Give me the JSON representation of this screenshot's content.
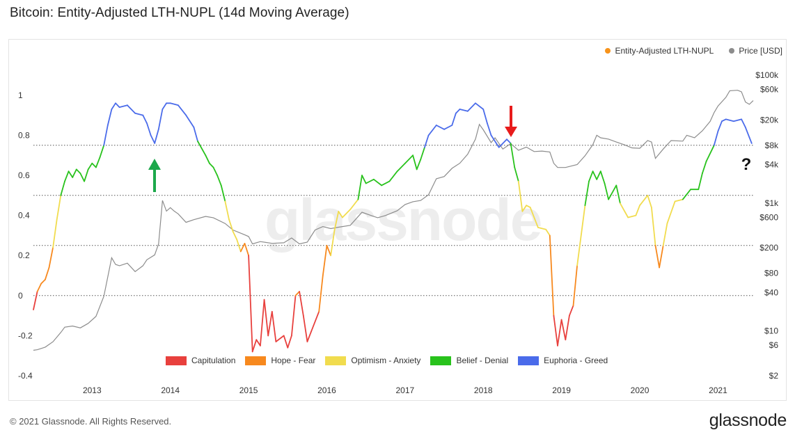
{
  "title": "Bitcoin: Entity-Adjusted LTH-NUPL (14d Moving Average)",
  "footer": {
    "copyright": "© 2021 Glassnode. All Rights Reserved.",
    "logo": "glassnode"
  },
  "watermark": "glassnode",
  "annotation": {
    "question": "?"
  },
  "chart_data": {
    "type": "line",
    "legend_top": [
      {
        "name": "Entity-Adjusted LTH-NUPL",
        "color": "#f7931a"
      },
      {
        "name": "Price [USD]",
        "color": "#8c8c8c"
      }
    ],
    "legend_bottom": [
      {
        "name": "Capitulation",
        "color": "#e8403d"
      },
      {
        "name": "Hope - Fear",
        "color": "#f7891e"
      },
      {
        "name": "Optimism - Anxiety",
        "color": "#f1dc4e"
      },
      {
        "name": "Belief - Denial",
        "color": "#28c21c"
      },
      {
        "name": "Euphoria - Greed",
        "color": "#4a6bea"
      }
    ],
    "x_ticks": [
      "2013",
      "2014",
      "2015",
      "2016",
      "2017",
      "2018",
      "2019",
      "2020",
      "2021"
    ],
    "x_range": [
      2012.25,
      2021.45
    ],
    "y_left_range": [
      -0.4,
      1.1
    ],
    "y_left_ticks": [
      "1",
      "0.8",
      "0.6",
      "0.4",
      "0.2",
      "0",
      "-0.2",
      "-0.4"
    ],
    "y_right_ticks": [
      "$100k",
      "$60k",
      "$20k",
      "$8k",
      "$4k",
      "$1k",
      "$600",
      "$200",
      "$80",
      "$40",
      "$10",
      "$6",
      "$2"
    ],
    "y_right_range": [
      2,
      100000
    ],
    "y_right_scale": "log",
    "thresholds": [
      0.75,
      0.5,
      0.25,
      0.0
    ],
    "nupl": [
      [
        2012.25,
        -0.07
      ],
      [
        2012.3,
        0.02
      ],
      [
        2012.35,
        0.06
      ],
      [
        2012.4,
        0.08
      ],
      [
        2012.45,
        0.14
      ],
      [
        2012.5,
        0.24
      ],
      [
        2012.55,
        0.38
      ],
      [
        2012.6,
        0.5
      ],
      [
        2012.65,
        0.57
      ],
      [
        2012.7,
        0.62
      ],
      [
        2012.75,
        0.59
      ],
      [
        2012.8,
        0.63
      ],
      [
        2012.85,
        0.61
      ],
      [
        2012.9,
        0.57
      ],
      [
        2012.95,
        0.63
      ],
      [
        2013.0,
        0.66
      ],
      [
        2013.05,
        0.64
      ],
      [
        2013.1,
        0.69
      ],
      [
        2013.15,
        0.75
      ],
      [
        2013.2,
        0.85
      ],
      [
        2013.25,
        0.93
      ],
      [
        2013.3,
        0.96
      ],
      [
        2013.35,
        0.94
      ],
      [
        2013.45,
        0.95
      ],
      [
        2013.55,
        0.91
      ],
      [
        2013.65,
        0.9
      ],
      [
        2013.7,
        0.86
      ],
      [
        2013.75,
        0.8
      ],
      [
        2013.8,
        0.76
      ],
      [
        2013.85,
        0.83
      ],
      [
        2013.9,
        0.93
      ],
      [
        2013.95,
        0.96
      ],
      [
        2014.0,
        0.96
      ],
      [
        2014.1,
        0.95
      ],
      [
        2014.2,
        0.9
      ],
      [
        2014.3,
        0.84
      ],
      [
        2014.35,
        0.77
      ],
      [
        2014.45,
        0.7
      ],
      [
        2014.5,
        0.66
      ],
      [
        2014.55,
        0.64
      ],
      [
        2014.6,
        0.6
      ],
      [
        2014.65,
        0.55
      ],
      [
        2014.7,
        0.47
      ],
      [
        2014.75,
        0.38
      ],
      [
        2014.8,
        0.32
      ],
      [
        2014.85,
        0.28
      ],
      [
        2014.9,
        0.22
      ],
      [
        2014.95,
        0.26
      ],
      [
        2015.0,
        0.2
      ],
      [
        2015.05,
        -0.28
      ],
      [
        2015.1,
        -0.22
      ],
      [
        2015.15,
        -0.25
      ],
      [
        2015.2,
        -0.02
      ],
      [
        2015.25,
        -0.2
      ],
      [
        2015.3,
        -0.08
      ],
      [
        2015.35,
        -0.23
      ],
      [
        2015.45,
        -0.2
      ],
      [
        2015.5,
        -0.26
      ],
      [
        2015.55,
        -0.2
      ],
      [
        2015.6,
        0.0
      ],
      [
        2015.65,
        0.02
      ],
      [
        2015.7,
        -0.1
      ],
      [
        2015.75,
        -0.23
      ],
      [
        2015.8,
        -0.18
      ],
      [
        2015.9,
        -0.08
      ],
      [
        2015.95,
        0.1
      ],
      [
        2016.0,
        0.25
      ],
      [
        2016.05,
        0.2
      ],
      [
        2016.1,
        0.33
      ],
      [
        2016.15,
        0.42
      ],
      [
        2016.2,
        0.39
      ],
      [
        2016.3,
        0.43
      ],
      [
        2016.4,
        0.48
      ],
      [
        2016.45,
        0.6
      ],
      [
        2016.5,
        0.56
      ],
      [
        2016.6,
        0.58
      ],
      [
        2016.7,
        0.55
      ],
      [
        2016.8,
        0.57
      ],
      [
        2016.9,
        0.62
      ],
      [
        2017.0,
        0.66
      ],
      [
        2017.1,
        0.7
      ],
      [
        2017.15,
        0.63
      ],
      [
        2017.2,
        0.68
      ],
      [
        2017.25,
        0.74
      ],
      [
        2017.3,
        0.8
      ],
      [
        2017.4,
        0.85
      ],
      [
        2017.5,
        0.83
      ],
      [
        2017.6,
        0.85
      ],
      [
        2017.65,
        0.91
      ],
      [
        2017.7,
        0.93
      ],
      [
        2017.8,
        0.92
      ],
      [
        2017.9,
        0.96
      ],
      [
        2018.0,
        0.93
      ],
      [
        2018.05,
        0.86
      ],
      [
        2018.1,
        0.8
      ],
      [
        2018.2,
        0.74
      ],
      [
        2018.3,
        0.78
      ],
      [
        2018.35,
        0.76
      ],
      [
        2018.4,
        0.64
      ],
      [
        2018.45,
        0.57
      ],
      [
        2018.5,
        0.42
      ],
      [
        2018.55,
        0.45
      ],
      [
        2018.6,
        0.44
      ],
      [
        2018.7,
        0.34
      ],
      [
        2018.8,
        0.33
      ],
      [
        2018.85,
        0.3
      ],
      [
        2018.9,
        -0.1
      ],
      [
        2018.95,
        -0.25
      ],
      [
        2019.0,
        -0.12
      ],
      [
        2019.05,
        -0.22
      ],
      [
        2019.1,
        -0.1
      ],
      [
        2019.15,
        -0.05
      ],
      [
        2019.2,
        0.15
      ],
      [
        2019.3,
        0.45
      ],
      [
        2019.35,
        0.57
      ],
      [
        2019.4,
        0.62
      ],
      [
        2019.45,
        0.58
      ],
      [
        2019.5,
        0.62
      ],
      [
        2019.55,
        0.56
      ],
      [
        2019.6,
        0.48
      ],
      [
        2019.7,
        0.55
      ],
      [
        2019.75,
        0.46
      ],
      [
        2019.85,
        0.39
      ],
      [
        2019.95,
        0.4
      ],
      [
        2020.0,
        0.45
      ],
      [
        2020.1,
        0.5
      ],
      [
        2020.15,
        0.44
      ],
      [
        2020.2,
        0.25
      ],
      [
        2020.25,
        0.14
      ],
      [
        2020.3,
        0.25
      ],
      [
        2020.35,
        0.36
      ],
      [
        2020.45,
        0.47
      ],
      [
        2020.55,
        0.48
      ],
      [
        2020.65,
        0.53
      ],
      [
        2020.75,
        0.53
      ],
      [
        2020.8,
        0.61
      ],
      [
        2020.85,
        0.67
      ],
      [
        2020.95,
        0.75
      ],
      [
        2021.0,
        0.82
      ],
      [
        2021.05,
        0.87
      ],
      [
        2021.1,
        0.88
      ],
      [
        2021.2,
        0.87
      ],
      [
        2021.3,
        0.88
      ],
      [
        2021.35,
        0.84
      ],
      [
        2021.4,
        0.79
      ],
      [
        2021.43,
        0.76
      ]
    ],
    "price": [
      [
        2012.25,
        5.0
      ],
      [
        2012.3,
        5.1
      ],
      [
        2012.4,
        5.6
      ],
      [
        2012.5,
        6.8
      ],
      [
        2012.6,
        9.5
      ],
      [
        2012.65,
        11.5
      ],
      [
        2012.75,
        12
      ],
      [
        2012.85,
        11.2
      ],
      [
        2012.95,
        13.2
      ],
      [
        2013.05,
        17
      ],
      [
        2013.15,
        35
      ],
      [
        2013.25,
        140
      ],
      [
        2013.3,
        110
      ],
      [
        2013.35,
        105
      ],
      [
        2013.45,
        115
      ],
      [
        2013.55,
        85
      ],
      [
        2013.65,
        105
      ],
      [
        2013.7,
        130
      ],
      [
        2013.8,
        155
      ],
      [
        2013.85,
        230
      ],
      [
        2013.9,
        1100
      ],
      [
        2013.95,
        750
      ],
      [
        2014.0,
        850
      ],
      [
        2014.05,
        750
      ],
      [
        2014.1,
        680
      ],
      [
        2014.2,
        500
      ],
      [
        2014.3,
        550
      ],
      [
        2014.45,
        620
      ],
      [
        2014.55,
        590
      ],
      [
        2014.7,
        480
      ],
      [
        2014.8,
        380
      ],
      [
        2014.95,
        320
      ],
      [
        2015.0,
        300
      ],
      [
        2015.05,
        230
      ],
      [
        2015.15,
        250
      ],
      [
        2015.3,
        235
      ],
      [
        2015.45,
        240
      ],
      [
        2015.55,
        285
      ],
      [
        2015.65,
        230
      ],
      [
        2015.75,
        245
      ],
      [
        2015.85,
        380
      ],
      [
        2015.95,
        430
      ],
      [
        2016.05,
        400
      ],
      [
        2016.15,
        420
      ],
      [
        2016.3,
        450
      ],
      [
        2016.45,
        720
      ],
      [
        2016.55,
        650
      ],
      [
        2016.65,
        590
      ],
      [
        2016.75,
        640
      ],
      [
        2016.9,
        760
      ],
      [
        2017.0,
        950
      ],
      [
        2017.1,
        1050
      ],
      [
        2017.2,
        1100
      ],
      [
        2017.3,
        1350
      ],
      [
        2017.4,
        2400
      ],
      [
        2017.5,
        2600
      ],
      [
        2017.6,
        3500
      ],
      [
        2017.7,
        4200
      ],
      [
        2017.8,
        5800
      ],
      [
        2017.9,
        10000
      ],
      [
        2017.95,
        17000
      ],
      [
        2018.0,
        14000
      ],
      [
        2018.1,
        8800
      ],
      [
        2018.15,
        10500
      ],
      [
        2018.25,
        7000
      ],
      [
        2018.35,
        8500
      ],
      [
        2018.45,
        6700
      ],
      [
        2018.55,
        7500
      ],
      [
        2018.65,
        6400
      ],
      [
        2018.75,
        6500
      ],
      [
        2018.85,
        6300
      ],
      [
        2018.9,
        4200
      ],
      [
        2018.95,
        3600
      ],
      [
        2019.05,
        3600
      ],
      [
        2019.2,
        4000
      ],
      [
        2019.3,
        5500
      ],
      [
        2019.4,
        8200
      ],
      [
        2019.45,
        11500
      ],
      [
        2019.5,
        10500
      ],
      [
        2019.6,
        10000
      ],
      [
        2019.7,
        9000
      ],
      [
        2019.8,
        8200
      ],
      [
        2019.9,
        7300
      ],
      [
        2020.0,
        7200
      ],
      [
        2020.1,
        9500
      ],
      [
        2020.15,
        9000
      ],
      [
        2020.2,
        5000
      ],
      [
        2020.3,
        7000
      ],
      [
        2020.4,
        9500
      ],
      [
        2020.55,
        9300
      ],
      [
        2020.6,
        11500
      ],
      [
        2020.7,
        10500
      ],
      [
        2020.8,
        13500
      ],
      [
        2020.9,
        19000
      ],
      [
        2020.95,
        26000
      ],
      [
        2021.0,
        33000
      ],
      [
        2021.1,
        45000
      ],
      [
        2021.15,
        57000
      ],
      [
        2021.25,
        58000
      ],
      [
        2021.3,
        55000
      ],
      [
        2021.35,
        38000
      ],
      [
        2021.4,
        35000
      ],
      [
        2021.45,
        40000
      ]
    ]
  }
}
